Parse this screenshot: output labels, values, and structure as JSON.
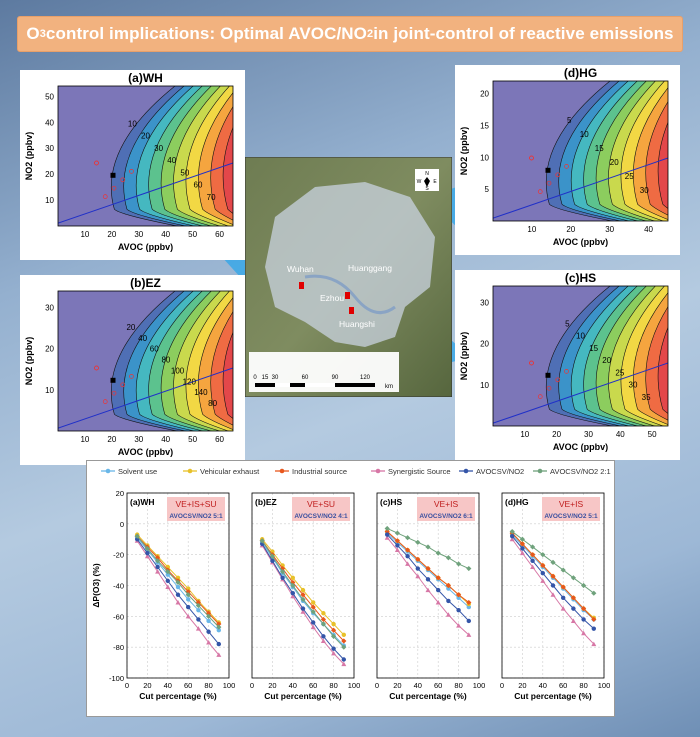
{
  "title": {
    "prefix": "O",
    "sub": "3",
    "rest": " control implications: Optimal AVOC/NO",
    "sub2": "2",
    "tail": " in joint-control of reactive emissions"
  },
  "colors": {
    "title_bg": "#f2b27f",
    "arrow": "#3aa8e8",
    "red_marker": "#e00000"
  },
  "map": {
    "cities": [
      "Wuhan",
      "Huanggang",
      "Ezhou",
      "Huangshi"
    ],
    "scale_ticks": [
      "0",
      "15",
      "30",
      "60",
      "90",
      "120"
    ],
    "scale_unit": "km",
    "compass": [
      "N",
      "S",
      "W",
      "E"
    ]
  },
  "isopleths": [
    {
      "id": "wh",
      "title": "(a)WH",
      "xlabel": "AVOC (ppbv)",
      "ylabel": "NO2 (ppbv)",
      "xticks": [
        "10",
        "20",
        "30",
        "40",
        "50",
        "60"
      ],
      "yticks": [
        "10",
        "20",
        "30",
        "40",
        "50"
      ],
      "contour_labels": [
        "10",
        "20",
        "30",
        "40",
        "50",
        "60",
        "70"
      ]
    },
    {
      "id": "ez",
      "title": "(b)EZ",
      "xlabel": "AVOC (ppbv)",
      "ylabel": "NO2 (ppbv)",
      "xticks": [
        "10",
        "20",
        "30",
        "40",
        "50",
        "60"
      ],
      "yticks": [
        "10",
        "20",
        "30"
      ],
      "contour_labels": [
        "20",
        "40",
        "60",
        "80",
        "100",
        "120",
        "140",
        "80"
      ]
    },
    {
      "id": "hg",
      "title": "(d)HG",
      "xlabel": "AVOC (ppbv)",
      "ylabel": "NO2 (ppbv)",
      "xticks": [
        "10",
        "20",
        "30",
        "40"
      ],
      "yticks": [
        "5",
        "10",
        "15",
        "20"
      ],
      "contour_labels": [
        "5",
        "10",
        "15",
        "20",
        "25",
        "30"
      ]
    },
    {
      "id": "hs",
      "title": "(c)HS",
      "xlabel": "AVOC (ppbv)",
      "ylabel": "NO2 (ppbv)",
      "xticks": [
        "10",
        "20",
        "30",
        "40",
        "50"
      ],
      "yticks": [
        "10",
        "20",
        "30"
      ],
      "contour_labels": [
        "5",
        "10",
        "15",
        "20",
        "25",
        "30",
        "35"
      ]
    }
  ],
  "chart_data": {
    "type": "line",
    "legend": [
      {
        "name": "Solvent use",
        "color": "#6ab7e8",
        "marker": "circle"
      },
      {
        "name": "Vehicular exhaust",
        "color": "#e8c12a",
        "marker": "circle"
      },
      {
        "name": "Industrial source",
        "color": "#e8571d",
        "marker": "diamond"
      },
      {
        "name": "Synergistic Source",
        "color": "#d777a6",
        "marker": "triangle"
      },
      {
        "name": "AVOCSV/NO2",
        "color": "#3455a8",
        "marker": "circle"
      },
      {
        "name": "AVOCSV/NO2 2:1",
        "color": "#6fa27c",
        "marker": "diamond"
      }
    ],
    "xlabel": "Cut percentage (%)",
    "ylabel": "ΔP(O3) (%)",
    "ylim": [
      -100,
      20
    ],
    "xlim": [
      0,
      100
    ],
    "xticks": [
      0,
      20,
      40,
      60,
      80,
      100
    ],
    "yticks": [
      20,
      0,
      -20,
      -40,
      -60,
      -80,
      -100
    ],
    "panels": [
      {
        "label": "(a)WH",
        "box_title": "VE+IS+SU",
        "box_sub": "AVOCSV/NO2 5:1",
        "x": [
          10,
          20,
          30,
          40,
          50,
          60,
          70,
          80,
          90
        ],
        "series": [
          {
            "name": "Solvent use",
            "values": [
              -9,
              -17,
              -25,
              -33,
              -41,
              -49,
              -56,
              -63,
              -69
            ]
          },
          {
            "name": "Vehicular exhaust",
            "values": [
              -7,
              -14,
              -21,
              -28,
              -35,
              -42,
              -50,
              -57,
              -64
            ]
          },
          {
            "name": "Industrial source",
            "values": [
              -8,
              -15,
              -22,
              -30,
              -37,
              -44,
              -51,
              -58,
              -65
            ]
          },
          {
            "name": "Synergistic Source",
            "values": [
              -11,
              -21,
              -31,
              -41,
              -51,
              -60,
              -68,
              -77,
              -85
            ]
          },
          {
            "name": "AVOCSV/NO2",
            "values": [
              -10,
              -19,
              -28,
              -37,
              -46,
              -54,
              -62,
              -70,
              -78
            ]
          },
          {
            "name": "AVOCSV/NO2 2:1",
            "values": [
              -8,
              -16,
              -24,
              -31,
              -38,
              -46,
              -53,
              -60,
              -67
            ]
          }
        ]
      },
      {
        "label": "(b)EZ",
        "box_title": "VE+SU",
        "box_sub": "AVOCSV/NO2 4:1",
        "x": [
          10,
          20,
          30,
          40,
          50,
          60,
          70,
          80,
          90
        ],
        "series": [
          {
            "name": "Solvent use",
            "values": [
              -12,
              -22,
              -32,
              -41,
              -50,
              -58,
              -65,
              -72,
              -79
            ]
          },
          {
            "name": "Vehicular exhaust",
            "values": [
              -10,
              -18,
              -27,
              -35,
              -43,
              -51,
              -58,
              -65,
              -72
            ]
          },
          {
            "name": "Industrial source",
            "values": [
              -11,
              -20,
              -29,
              -38,
              -46,
              -54,
              -62,
              -69,
              -76
            ]
          },
          {
            "name": "Synergistic Source",
            "values": [
              -14,
              -25,
              -36,
              -47,
              -57,
              -67,
              -76,
              -84,
              -91
            ]
          },
          {
            "name": "AVOCSV/NO2",
            "values": [
              -13,
              -24,
              -35,
              -45,
              -55,
              -64,
              -73,
              -81,
              -88
            ]
          },
          {
            "name": "AVOCSV/NO2 2:1",
            "values": [
              -11,
              -21,
              -31,
              -40,
              -49,
              -57,
              -65,
              -73,
              -80
            ]
          }
        ]
      },
      {
        "label": "(c)HS",
        "box_title": "VE+IS",
        "box_sub": "AVOCSV/NO2 6:1",
        "x": [
          10,
          20,
          30,
          40,
          50,
          60,
          70,
          80,
          90
        ],
        "series": [
          {
            "name": "Solvent use",
            "values": [
              -6,
              -12,
              -18,
              -24,
              -30,
              -36,
              -42,
              -48,
              -54
            ]
          },
          {
            "name": "Vehicular exhaust",
            "values": [
              -5,
              -11,
              -17,
              -23,
              -29,
              -35,
              -40,
              -46,
              -52
            ]
          },
          {
            "name": "Industrial source",
            "values": [
              -5,
              -11,
              -17,
              -23,
              -29,
              -35,
              -40,
              -46,
              -51
            ]
          },
          {
            "name": "Synergistic Source",
            "values": [
              -9,
              -17,
              -26,
              -34,
              -43,
              -51,
              -59,
              -66,
              -72
            ]
          },
          {
            "name": "AVOCSV/NO2",
            "values": [
              -7,
              -14,
              -21,
              -29,
              -36,
              -43,
              -50,
              -56,
              -63
            ]
          },
          {
            "name": "AVOCSV/NO2 2:1",
            "values": [
              -3,
              -6,
              -9,
              -12,
              -15,
              -19,
              -22,
              -26,
              -29
            ]
          }
        ]
      },
      {
        "label": "(d)HG",
        "box_title": "VE+IS",
        "box_sub": "AVOCSV/NO2 5:1",
        "x": [
          10,
          20,
          30,
          40,
          50,
          60,
          70,
          80,
          90
        ],
        "series": [
          {
            "name": "Solvent use",
            "values": [
              -7,
              -14,
              -21,
              -28,
              -35,
              -42,
              -49,
              -56,
              -62
            ]
          },
          {
            "name": "Vehicular exhaust",
            "values": [
              -6,
              -13,
              -20,
              -27,
              -34,
              -41,
              -48,
              -55,
              -61
            ]
          },
          {
            "name": "Industrial source",
            "values": [
              -6,
              -13,
              -20,
              -27,
              -34,
              -41,
              -48,
              -55,
              -62
            ]
          },
          {
            "name": "Synergistic Source",
            "values": [
              -10,
              -19,
              -28,
              -37,
              -46,
              -55,
              -63,
              -71,
              -78
            ]
          },
          {
            "name": "AVOCSV/NO2",
            "values": [
              -8,
              -16,
              -24,
              -32,
              -40,
              -48,
              -55,
              -62,
              -68
            ]
          },
          {
            "name": "AVOCSV/NO2 2:1",
            "values": [
              -5,
              -10,
              -15,
              -20,
              -25,
              -30,
              -35,
              -40,
              -45
            ]
          }
        ]
      }
    ]
  }
}
